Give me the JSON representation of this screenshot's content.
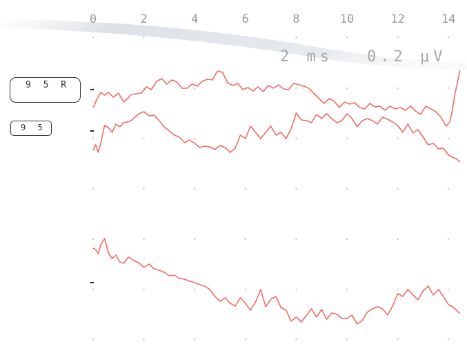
{
  "chart_data": {
    "type": "line",
    "x_ticks": [
      "0",
      "2",
      "4",
      "6",
      "8",
      "10",
      "12",
      "14"
    ],
    "xlim": [
      0,
      14.5
    ],
    "scale_time": "2 ms",
    "scale_amplitude": "0.2 μV",
    "grid": "dotted",
    "colors": {
      "trace": "#ef6b62",
      "grid": "#c9c9c9",
      "text": "#9a9a9a"
    },
    "labels": [
      "9 5 R",
      "9 5"
    ],
    "series": [
      {
        "x": [
          0,
          0.15,
          0.3,
          0.45,
          0.6,
          0.8,
          1.0,
          1.2,
          1.35,
          1.5,
          1.7,
          1.9,
          2.1,
          2.3,
          2.5,
          2.7,
          2.9,
          3.1,
          3.3,
          3.5,
          3.7,
          3.9,
          4.1,
          4.3,
          4.5,
          4.7,
          4.9,
          5.1,
          5.3,
          5.5,
          5.7,
          5.9,
          6.1,
          6.3,
          6.5,
          6.7,
          6.9,
          7.1,
          7.3,
          7.5,
          7.7,
          7.9,
          8.1,
          8.3,
          8.5,
          8.7,
          8.9,
          9.1,
          9.3,
          9.5,
          9.7,
          9.9,
          10.1,
          10.3,
          10.5,
          10.7,
          10.9,
          11.1,
          11.3,
          11.5,
          11.7,
          11.9,
          12.1,
          12.3,
          12.5,
          12.7,
          12.9,
          13.1,
          13.3,
          13.5,
          13.7,
          13.9,
          14.05,
          14.15,
          14.25,
          14.35,
          14.45
        ],
        "y": [
          -0.16,
          -0.04,
          0.06,
          0.02,
          0.06,
          -0.01,
          0.05,
          -0.08,
          -0.03,
          0.03,
          0.04,
          0.05,
          0.14,
          0.1,
          0.22,
          0.26,
          0.18,
          0.24,
          0.21,
          0.12,
          0.12,
          0.18,
          0.15,
          0.22,
          0.25,
          0.24,
          0.37,
          0.35,
          0.2,
          0.16,
          0.19,
          0.1,
          0.13,
          0.08,
          0.14,
          0.07,
          0.16,
          0.12,
          0.17,
          0.11,
          0.1,
          0.19,
          0.17,
          0.15,
          0.12,
          0.04,
          -0.03,
          -0.1,
          -0.03,
          -0.07,
          -0.16,
          -0.08,
          -0.11,
          -0.09,
          -0.16,
          -0.18,
          -0.1,
          -0.15,
          -0.14,
          -0.2,
          -0.14,
          -0.18,
          -0.16,
          -0.2,
          -0.14,
          -0.21,
          -0.26,
          -0.14,
          -0.18,
          -0.22,
          -0.3,
          -0.43,
          -0.37,
          -0.2,
          0.03,
          0.2,
          0.38
        ]
      },
      {
        "x": [
          0,
          0.1,
          0.2,
          0.3,
          0.45,
          0.6,
          0.75,
          0.9,
          1.05,
          1.2,
          1.35,
          1.5,
          1.65,
          1.8,
          2.0,
          2.2,
          2.4,
          2.6,
          2.8,
          3.0,
          3.2,
          3.4,
          3.6,
          3.8,
          4.0,
          4.2,
          4.4,
          4.6,
          4.8,
          5.0,
          5.2,
          5.4,
          5.6,
          5.8,
          6.0,
          6.2,
          6.4,
          6.6,
          6.8,
          7.0,
          7.2,
          7.4,
          7.6,
          7.8,
          8.0,
          8.2,
          8.4,
          8.6,
          8.8,
          9.0,
          9.2,
          9.4,
          9.6,
          9.8,
          10.0,
          10.2,
          10.4,
          10.6,
          10.8,
          11.0,
          11.2,
          11.4,
          11.6,
          11.8,
          12.0,
          12.2,
          12.4,
          12.6,
          12.8,
          13.0,
          13.2,
          13.4,
          13.6,
          13.8,
          14.0,
          14.15,
          14.3,
          14.45
        ],
        "y": [
          -0.28,
          -0.2,
          -0.31,
          -0.18,
          0.08,
          0.05,
          -0.02,
          0.1,
          0.06,
          0.12,
          0.13,
          0.15,
          0.2,
          0.25,
          0.28,
          0.22,
          0.23,
          0.15,
          0.06,
          0.0,
          -0.06,
          -0.09,
          -0.17,
          -0.13,
          -0.18,
          -0.24,
          -0.22,
          -0.23,
          -0.27,
          -0.21,
          -0.24,
          -0.31,
          -0.25,
          -0.06,
          -0.11,
          0.07,
          -0.02,
          -0.11,
          -0.02,
          0.07,
          -0.06,
          -0.02,
          -0.11,
          0.03,
          0.26,
          0.16,
          0.15,
          0.12,
          0.24,
          0.18,
          0.25,
          0.18,
          0.12,
          0.15,
          0.25,
          0.18,
          0.06,
          0.15,
          0.18,
          0.15,
          0.1,
          0.2,
          0.17,
          0.13,
          0.08,
          -0.02,
          0.1,
          -0.03,
          0.02,
          -0.09,
          -0.2,
          -0.18,
          -0.26,
          -0.25,
          -0.35,
          -0.38,
          -0.4,
          -0.45
        ]
      },
      {
        "x": [
          0,
          0.1,
          0.2,
          0.3,
          0.45,
          0.6,
          0.75,
          0.9,
          1.05,
          1.2,
          1.4,
          1.6,
          1.8,
          2.0,
          2.2,
          2.4,
          2.6,
          2.8,
          3.0,
          3.2,
          3.4,
          3.6,
          3.8,
          4.0,
          4.2,
          4.4,
          4.6,
          4.8,
          5.0,
          5.2,
          5.4,
          5.6,
          5.8,
          6.0,
          6.2,
          6.4,
          6.6,
          6.8,
          7.0,
          7.2,
          7.4,
          7.6,
          7.8,
          8.0,
          8.2,
          8.4,
          8.6,
          8.8,
          9.0,
          9.2,
          9.4,
          9.6,
          9.8,
          10.0,
          10.2,
          10.4,
          10.6,
          10.8,
          11.0,
          11.2,
          11.4,
          11.6,
          11.8,
          12.0,
          12.2,
          12.4,
          12.6,
          12.8,
          13.0,
          13.2,
          13.4,
          13.6,
          13.8,
          14.0,
          14.2,
          14.45
        ],
        "y": [
          0.5,
          0.48,
          0.42,
          0.55,
          0.64,
          0.43,
          0.35,
          0.4,
          0.3,
          0.28,
          0.37,
          0.32,
          0.29,
          0.22,
          0.27,
          0.2,
          0.18,
          0.15,
          0.1,
          0.11,
          0.06,
          0.05,
          0.02,
          0.0,
          -0.03,
          -0.05,
          -0.1,
          -0.2,
          -0.27,
          -0.22,
          -0.3,
          -0.34,
          -0.22,
          -0.3,
          -0.4,
          -0.28,
          -0.1,
          -0.35,
          -0.24,
          -0.2,
          -0.36,
          -0.4,
          -0.56,
          -0.5,
          -0.57,
          -0.48,
          -0.38,
          -0.5,
          -0.39,
          -0.53,
          -0.44,
          -0.46,
          -0.52,
          -0.52,
          -0.47,
          -0.6,
          -0.55,
          -0.43,
          -0.38,
          -0.35,
          -0.38,
          -0.47,
          -0.34,
          -0.16,
          -0.2,
          -0.1,
          -0.18,
          -0.25,
          -0.12,
          -0.05,
          -0.18,
          -0.1,
          -0.2,
          -0.32,
          -0.36,
          -0.45
        ]
      }
    ]
  }
}
